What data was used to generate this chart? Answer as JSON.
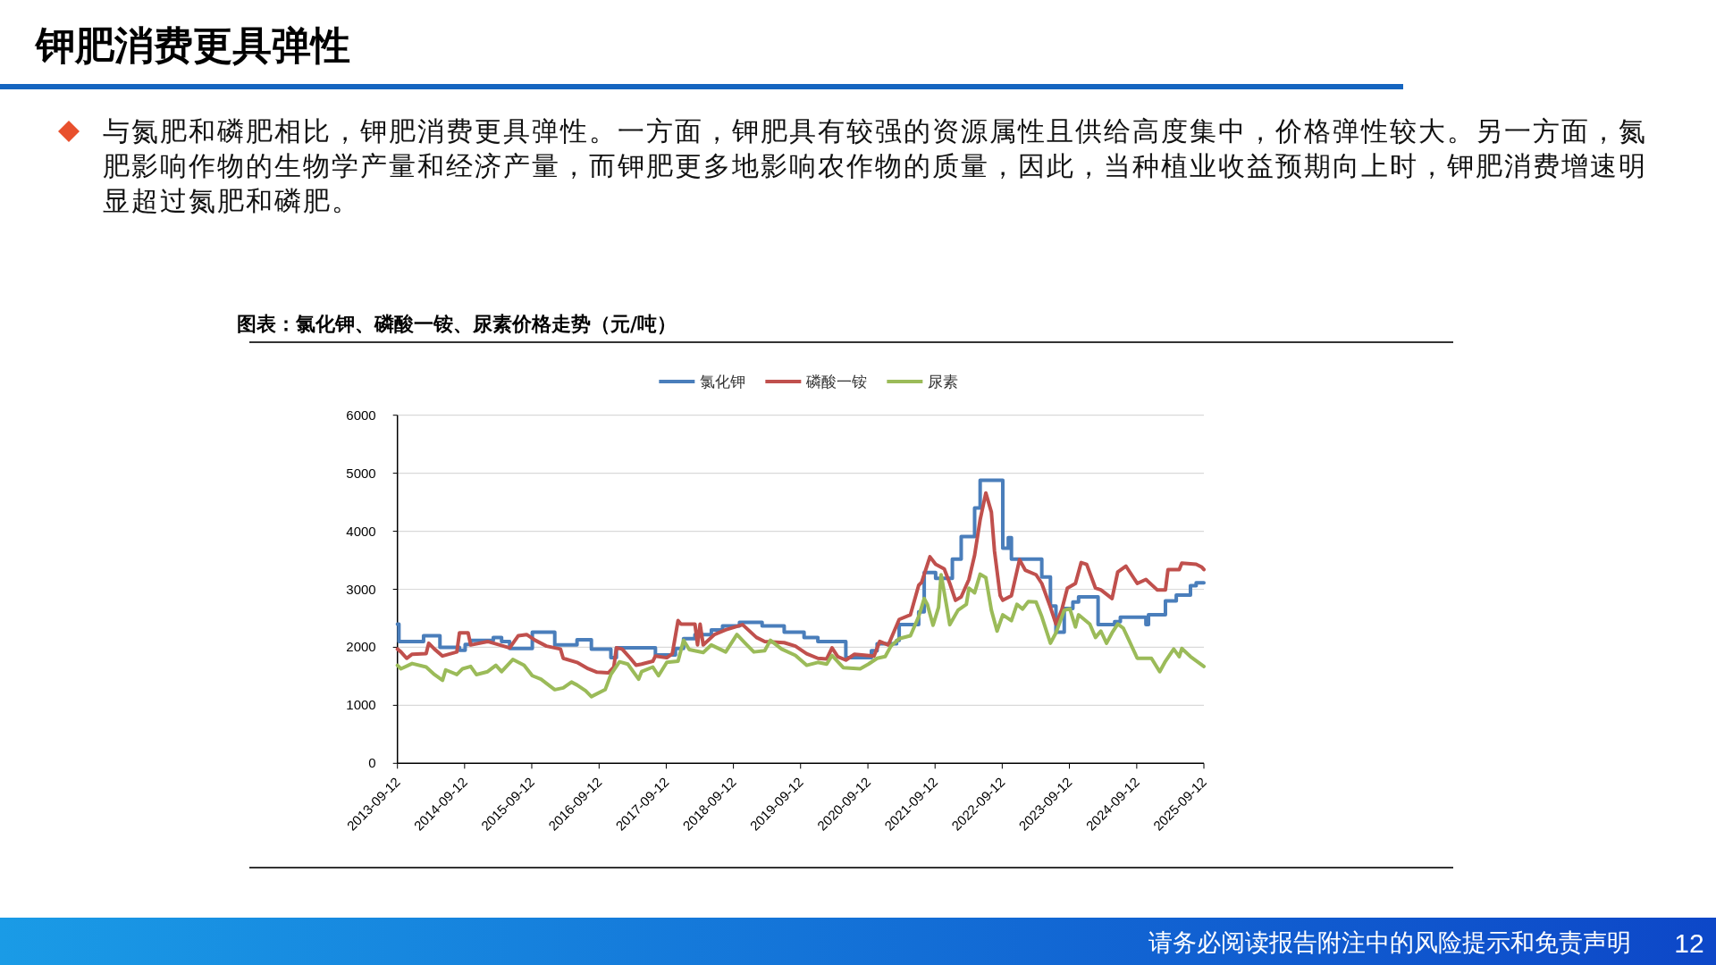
{
  "chart_data": {
    "type": "line",
    "title": "钾肥消费更具弹性",
    "subtitle": "图表：氯化钾、磷酸一铵、尿素价格走势（元/吨）",
    "annotations": [
      "与氮肥和磷肥相比，钾肥消费更具弹性。一方面，钾肥具有较强的资源属性且供给高度集中，价格弹性较大。另一方面，氮肥影响作物的生物学产量和经济产量，而钾肥更多地影响农作物的质量，因此，当种植业收益预期向上时，钾肥消费增速明显超过氮肥和磷肥。",
      "请务必阅读报告附注中的风险提示和免责声明",
      "12"
    ],
    "xlim": [
      "2013-09-12",
      "2025-09-12"
    ],
    "xticks": [
      "2013-09-12",
      "2014-09-12",
      "2015-09-12",
      "2016-09-12",
      "2017-09-12",
      "2018-09-12",
      "2019-09-12",
      "2020-09-12",
      "2021-09-12",
      "2022-09-12",
      "2023-09-12",
      "2024-09-12",
      "2025-09-12"
    ],
    "ylim": [
      0,
      6000
    ],
    "yticks": [
      0,
      1000,
      2000,
      3000,
      4000,
      5000,
      6000
    ],
    "grid": "y",
    "legend": "top",
    "line_style": "solid",
    "marker": "none",
    "series": [
      {
        "name": "氯化钾",
        "color": "#4a7ebb",
        "type": "step",
        "x": [
          "2013-09-12",
          "2013-09-20",
          "2014-02-01",
          "2014-05-01",
          "2014-08-15",
          "2014-09-15",
          "2014-10-15",
          "2015-02-15",
          "2015-04-01",
          "2015-05-15",
          "2015-09-15",
          "2016-01-15",
          "2016-05-15",
          "2016-08-01",
          "2016-11-15",
          "2016-12-15",
          "2017-07-15",
          "2017-11-01",
          "2017-12-15",
          "2018-02-15",
          "2018-05-15",
          "2018-07-15",
          "2018-10-15",
          "2019-02-15",
          "2019-06-15",
          "2019-10-01",
          "2019-12-15",
          "2020-05-15",
          "2020-10-01",
          "2020-11-01",
          "2021-02-15",
          "2021-03-01",
          "2021-06-15",
          "2021-07-15",
          "2021-09-15",
          "2021-12-15",
          "2022-02-01",
          "2022-04-15",
          "2022-05-15",
          "2022-09-15",
          "2022-10-15",
          "2022-11-01",
          "2023-04-15",
          "2023-06-01",
          "2023-07-01",
          "2023-08-15",
          "2023-10-01",
          "2023-11-01",
          "2024-02-15",
          "2024-05-15",
          "2024-06-15",
          "2024-11-01",
          "2024-11-15",
          "2025-02-15",
          "2025-04-15",
          "2025-07-01",
          "2025-08-01",
          "2025-09-12"
        ],
        "values": [
          2400,
          2100,
          2200,
          2000,
          1950,
          2050,
          2120,
          2170,
          2100,
          1980,
          2260,
          2040,
          2130,
          1970,
          1820,
          1990,
          1870,
          1980,
          2150,
          2220,
          2300,
          2370,
          2430,
          2370,
          2260,
          2170,
          2100,
          1820,
          1940,
          2060,
          2120,
          2390,
          2610,
          3290,
          3190,
          3520,
          3910,
          4400,
          4880,
          3710,
          3890,
          3520,
          3210,
          2710,
          2260,
          2670,
          2780,
          2870,
          2390,
          2440,
          2520,
          2390,
          2560,
          2800,
          2900,
          3060,
          3110,
          3110
        ]
      },
      {
        "name": "磷酸一铵",
        "color": "#c0504d",
        "x": [
          "2013-09-12",
          "2013-10-01",
          "2013-11-01",
          "2013-12-01",
          "2014-02-15",
          "2014-03-01",
          "2014-04-01",
          "2014-05-15",
          "2014-08-01",
          "2014-08-15",
          "2014-10-01",
          "2014-10-15",
          "2015-01-15",
          "2015-05-15",
          "2015-07-01",
          "2015-08-15",
          "2015-10-01",
          "2015-12-01",
          "2016-02-15",
          "2016-03-01",
          "2016-05-15",
          "2016-07-15",
          "2016-09-01",
          "2016-11-01",
          "2016-12-01",
          "2016-12-15",
          "2017-01-15",
          "2017-03-01",
          "2017-04-01",
          "2017-05-01",
          "2017-07-01",
          "2017-07-15",
          "2017-09-15",
          "2017-10-15",
          "2017-11-15",
          "2017-12-01",
          "2018-02-15",
          "2018-03-01",
          "2018-03-15",
          "2018-04-01",
          "2018-06-01",
          "2018-08-01",
          "2018-11-01",
          "2019-01-15",
          "2019-03-01",
          "2019-06-15",
          "2019-08-15",
          "2019-10-15",
          "2019-12-15",
          "2020-02-01",
          "2020-03-01",
          "2020-04-01",
          "2020-05-15",
          "2020-07-01",
          "2020-10-15",
          "2020-11-15",
          "2021-01-01",
          "2021-03-01",
          "2021-05-01",
          "2021-06-15",
          "2021-07-01",
          "2021-08-15",
          "2021-09-15",
          "2021-11-01",
          "2021-12-01",
          "2022-01-01",
          "2022-02-01",
          "2022-03-15",
          "2022-04-15",
          "2022-05-15",
          "2022-06-15",
          "2022-07-15",
          "2022-08-01",
          "2022-09-01",
          "2022-09-15",
          "2022-11-01",
          "2022-12-15",
          "2023-01-15",
          "2023-03-15",
          "2023-04-15",
          "2023-06-01",
          "2023-07-01",
          "2023-08-01",
          "2023-09-01",
          "2023-10-15",
          "2023-11-15",
          "2023-12-15",
          "2024-02-01",
          "2024-03-01",
          "2024-05-01",
          "2024-06-01",
          "2024-07-15",
          "2024-09-15",
          "2024-11-01",
          "2025-01-01",
          "2025-02-15",
          "2025-03-01",
          "2025-05-01",
          "2025-05-15",
          "2025-08-01",
          "2025-09-01",
          "2025-09-12"
        ],
        "values": [
          1970,
          1920,
          1810,
          1880,
          1890,
          2070,
          1970,
          1850,
          1920,
          2250,
          2250,
          2040,
          2100,
          1990,
          2200,
          2220,
          2120,
          2020,
          1970,
          1810,
          1740,
          1630,
          1570,
          1560,
          1660,
          1990,
          1970,
          1810,
          1690,
          1710,
          1760,
          1850,
          1820,
          1890,
          2460,
          2400,
          2400,
          2040,
          2400,
          2040,
          2220,
          2300,
          2390,
          2170,
          2100,
          2080,
          2020,
          1890,
          1810,
          1800,
          1990,
          1840,
          1780,
          1880,
          1850,
          2100,
          2040,
          2480,
          2560,
          3070,
          3120,
          3560,
          3430,
          3350,
          3100,
          2810,
          2870,
          3170,
          3590,
          4200,
          4660,
          4330,
          3660,
          2890,
          2810,
          2890,
          3510,
          3330,
          3250,
          3100,
          2690,
          2400,
          2640,
          3020,
          3100,
          3460,
          3430,
          3020,
          2990,
          2840,
          3300,
          3400,
          3100,
          3170,
          2990,
          2990,
          3340,
          3340,
          3450,
          3430,
          3380,
          3340
        ]
      },
      {
        "name": "尿素",
        "color": "#9bbb59",
        "x": [
          "2013-09-12",
          "2013-10-01",
          "2013-12-01",
          "2014-02-15",
          "2014-04-01",
          "2014-05-15",
          "2014-06-01",
          "2014-08-01",
          "2014-09-01",
          "2014-10-15",
          "2014-11-15",
          "2015-01-15",
          "2015-03-01",
          "2015-04-01",
          "2015-06-01",
          "2015-08-01",
          "2015-09-15",
          "2015-11-01",
          "2016-01-15",
          "2016-03-01",
          "2016-04-15",
          "2016-05-15",
          "2016-07-01",
          "2016-08-01",
          "2016-10-15",
          "2016-11-15",
          "2017-01-01",
          "2017-02-15",
          "2017-04-15",
          "2017-05-01",
          "2017-07-01",
          "2017-08-01",
          "2017-09-15",
          "2017-11-15",
          "2017-12-15",
          "2018-01-15",
          "2018-04-01",
          "2018-05-15",
          "2018-08-01",
          "2018-10-01",
          "2018-11-15",
          "2019-01-01",
          "2019-03-01",
          "2019-04-01",
          "2019-06-01",
          "2019-08-15",
          "2019-10-15",
          "2019-12-15",
          "2020-02-01",
          "2020-03-01",
          "2020-05-01",
          "2020-08-01",
          "2020-09-15",
          "2020-11-01",
          "2020-12-15",
          "2021-01-15",
          "2021-03-01",
          "2021-05-01",
          "2021-06-15",
          "2021-07-15",
          "2021-08-01",
          "2021-09-01",
          "2021-10-01",
          "2021-10-15",
          "2021-11-15",
          "2021-12-01",
          "2022-01-15",
          "2022-03-01",
          "2022-03-15",
          "2022-04-15",
          "2022-05-15",
          "2022-06-15",
          "2022-07-15",
          "2022-08-15",
          "2022-09-15",
          "2022-11-01",
          "2022-12-01",
          "2023-01-01",
          "2023-02-01",
          "2023-03-15",
          "2023-04-15",
          "2023-06-01",
          "2023-07-01",
          "2023-08-15",
          "2023-09-15",
          "2023-10-15",
          "2023-11-01",
          "2024-01-01",
          "2024-02-01",
          "2024-03-01",
          "2024-04-01",
          "2024-05-01",
          "2024-06-01",
          "2024-07-01",
          "2024-08-01",
          "2024-09-15",
          "2024-12-01",
          "2025-01-15",
          "2025-02-15",
          "2025-04-01",
          "2025-05-01",
          "2025-05-15",
          "2025-07-01",
          "2025-09-12"
        ],
        "values": [
          1690,
          1630,
          1720,
          1660,
          1530,
          1430,
          1610,
          1530,
          1630,
          1670,
          1530,
          1580,
          1690,
          1580,
          1790,
          1690,
          1510,
          1450,
          1270,
          1300,
          1400,
          1350,
          1250,
          1150,
          1270,
          1530,
          1750,
          1710,
          1450,
          1580,
          1660,
          1510,
          1740,
          1760,
          2120,
          1960,
          1910,
          2040,
          1920,
          2220,
          2070,
          1920,
          1940,
          2120,
          1970,
          1860,
          1690,
          1740,
          1710,
          1860,
          1650,
          1630,
          1710,
          1810,
          1840,
          2020,
          2150,
          2200,
          2530,
          2840,
          2740,
          2380,
          2690,
          3250,
          2690,
          2390,
          2640,
          2740,
          3020,
          2940,
          3260,
          3200,
          2640,
          2280,
          2560,
          2460,
          2740,
          2660,
          2790,
          2780,
          2530,
          2070,
          2250,
          2640,
          2660,
          2350,
          2560,
          2400,
          2170,
          2280,
          2070,
          2250,
          2400,
          2330,
          2120,
          1810,
          1810,
          1580,
          1760,
          1970,
          1840,
          1980,
          1840,
          1670
        ]
      }
    ]
  }
}
